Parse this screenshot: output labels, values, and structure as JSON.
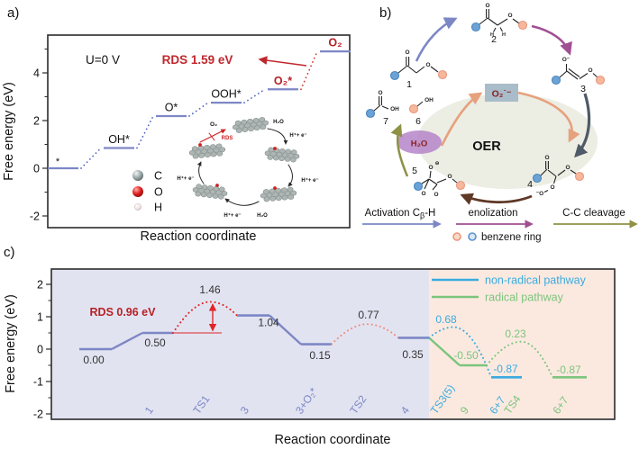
{
  "panels": {
    "a_tag": "a)",
    "b_tag": "b)",
    "c_tag": "c)"
  },
  "colors": {
    "periwinkle": "#7d87c5",
    "connector_blue": "#4a5fc0",
    "crimson": "#b72025",
    "bright_red": "#e02525",
    "salmon": "#f08d7d",
    "cyan": "#3aabdf",
    "green": "#7cc47c",
    "lavender_bg": "#e2e3f1",
    "peach_bg": "#fbe9e0",
    "axis": "#2b2b2b",
    "value_text": "#333333",
    "purple": "#a04f93",
    "slate": "#4f5a68",
    "brown": "#5f3826",
    "olive": "#8f9245",
    "orange": "#e6a17e",
    "oer_fill": "#ecede3",
    "o2_box": "#a9bcc9",
    "dark_red_text": "#8c1f1f",
    "h2o_fill": "#b585c8",
    "benzene_orange": "#f6b89d",
    "benzene_blue": "#6ba3d6",
    "flake": "#aeb6b4"
  },
  "chart_data": [
    {
      "type": "step-energy-diagram",
      "panel": "a",
      "xlabel": "Reaction coordinate",
      "ylabel": "Free energy (eV)",
      "yticks": [
        -2,
        0,
        2,
        4
      ],
      "ylim": [
        -2.5,
        5.6
      ],
      "annotations": {
        "u": "U=0 V",
        "rds": "RDS 1.59 eV"
      },
      "rds_ev": 1.59,
      "steps": [
        {
          "label": "*",
          "E": 0.0,
          "highlight": false
        },
        {
          "label": "OH*",
          "E": 0.85,
          "highlight": false
        },
        {
          "label": "O*",
          "E": 2.19,
          "highlight": false
        },
        {
          "label": "OOH*",
          "E": 2.75,
          "highlight": false
        },
        {
          "label": "O₂*",
          "E": 3.31,
          "highlight": true
        },
        {
          "label": "O₂",
          "E": 4.9,
          "highlight": true
        }
      ],
      "rds_connector": [
        4,
        5
      ]
    },
    {
      "type": "step-energy-diagram",
      "panel": "c",
      "xlabel": "Reaction coordinate",
      "ylabel": "Free energy (eV)",
      "yticks": [
        -2,
        -1,
        0,
        1,
        2
      ],
      "ylim": [
        -2.2,
        2.5
      ],
      "annotations": {
        "rds": "RDS 0.96 eV"
      },
      "rds_ev": 0.96,
      "legend": [
        {
          "label": "non-radical pathway",
          "series": "nonradical",
          "color": "#3aabdf"
        },
        {
          "label": "radical pathway",
          "series": "radical",
          "color": "#7cc47c"
        }
      ],
      "features": [
        {
          "kind": "platform",
          "series": "main",
          "E": 0.0,
          "value": "0.00",
          "xlabel": ""
        },
        {
          "kind": "platform",
          "series": "main",
          "E": 0.5,
          "value": "0.50",
          "xlabel": "1"
        },
        {
          "kind": "barrier",
          "series": "rds",
          "E": 1.46,
          "value": "1.46",
          "xlabel": "TS1",
          "connects": [
            1,
            3
          ]
        },
        {
          "kind": "platform",
          "series": "main",
          "E": 1.04,
          "value": "1.04",
          "xlabel": "3"
        },
        {
          "kind": "platform",
          "series": "main",
          "E": 0.15,
          "value": "0.15",
          "xlabel": "3+O₂*"
        },
        {
          "kind": "barrier",
          "series": "ts2",
          "E": 0.77,
          "value": "0.77",
          "xlabel": "TS2",
          "connects": [
            4,
            6
          ]
        },
        {
          "kind": "platform",
          "series": "main",
          "E": 0.35,
          "value": "0.35",
          "xlabel": "4"
        },
        {
          "kind": "barrier",
          "series": "nonradical",
          "E": 0.68,
          "value": "0.68",
          "xlabel": "TS3(5)",
          "connects": [
            6,
            9
          ]
        },
        {
          "kind": "platform",
          "series": "radical",
          "E": -0.5,
          "value": "-0.50",
          "xlabel": "9"
        },
        {
          "kind": "platform",
          "series": "nonradical",
          "E": -0.87,
          "value": "-0.87",
          "xlabel": "6+7"
        },
        {
          "kind": "barrier",
          "series": "radical",
          "E": 0.23,
          "value": "0.23",
          "xlabel": "TS4",
          "connects": [
            8,
            11
          ]
        },
        {
          "kind": "platform",
          "series": "radical",
          "E": -0.87,
          "value": "-0.87",
          "xlabel": "6+7"
        }
      ],
      "links": [
        {
          "from": 0,
          "to": 1,
          "series": "main"
        },
        {
          "from": 3,
          "to": 4,
          "series": "main"
        },
        {
          "from": 6,
          "to": 8,
          "series": "radical"
        }
      ]
    }
  ],
  "panel_a": {
    "atom_legend": [
      {
        "symbol": "C"
      },
      {
        "symbol": "O"
      },
      {
        "symbol": "H"
      }
    ],
    "inset": {
      "o2": "O₂",
      "rds": "RDS",
      "h2o": "H₂O",
      "hpe": "H⁺+ e⁻"
    }
  },
  "panel_b": {
    "molecule_numbers": [
      "1",
      "2",
      "3",
      "4",
      "5",
      "6",
      "7"
    ],
    "oer_label": "OER",
    "o2_radical": "O₂˙⁻",
    "h2o_label": "H₂O",
    "step_legend": [
      {
        "prefix": "Activation C",
        "sub": "β",
        "suffix": "-H"
      },
      {
        "label": "enolization"
      },
      {
        "label": "C-C cleavage"
      }
    ],
    "benzene_legend": "benzene ring",
    "atoms": {
      "o": "O",
      "o_minus": "O⁻",
      "minus_o": "⁻O",
      "oh": "OH",
      "h": "H",
      "circled_minus": "⊖"
    }
  },
  "panel_c": {
    "rds_label": "RDS 0.96 eV"
  }
}
